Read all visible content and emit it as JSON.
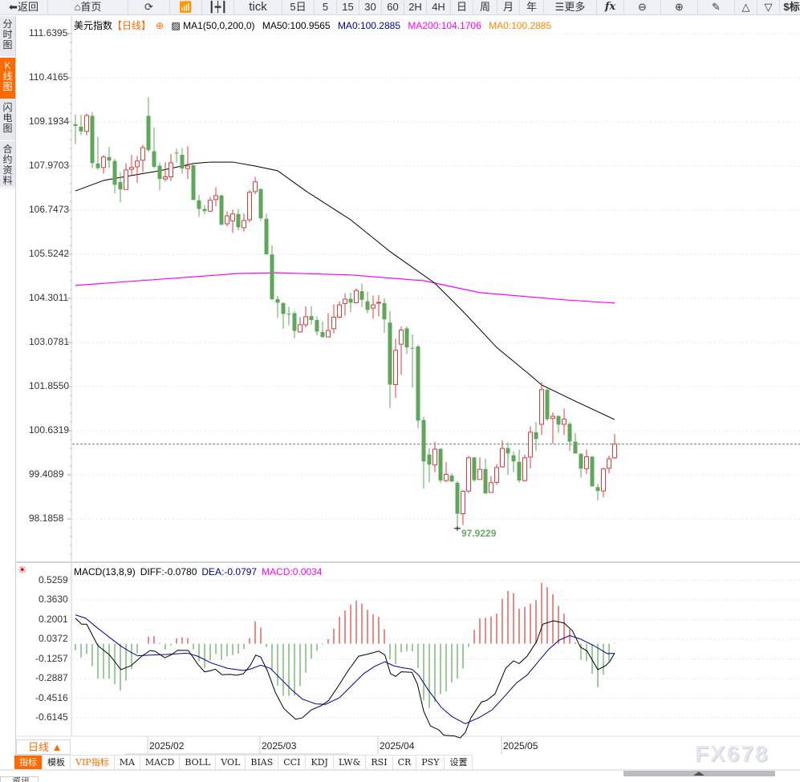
{
  "toolbar": {
    "back": "返回",
    "home": "首页",
    "tick": "tick",
    "p5d": "5日",
    "p5": "5",
    "p15": "15",
    "p30": "30",
    "p60": "60",
    "p2h": "2H",
    "p4h": "4H",
    "day": "日",
    "week": "周",
    "month": "月",
    "year": "年",
    "more": "更多",
    "fx": "fx",
    "dollar": "$标"
  },
  "side_tabs": [
    {
      "label": "分时图"
    },
    {
      "label": "K线图"
    },
    {
      "label": "闪电图"
    },
    {
      "label": "合约资料"
    }
  ],
  "legend": {
    "name": "美元指数",
    "period": "【日线】",
    "ma1": "MA1(50,0,200,0)",
    "ma50": "MA50:100.9565",
    "ma0a": "MA0:100.2885",
    "ma200": "MA200:104.1706",
    "ma0b": "MA0:100.2885"
  },
  "macd_legend": {
    "name": "MACD(13,8,9)",
    "diff": "DIFF:-0.0780",
    "dea": "DEA:-0.0797",
    "macd": "MACD:0.0034"
  },
  "colors": {
    "up": "#e03b3b",
    "down": "#5ea65a",
    "ma50": "#000000",
    "ma200": "#ff00ff",
    "dea": "#0000a0",
    "accent": "#ff6a00"
  },
  "price_ticks": [
    "111.6395",
    "110.4165",
    "109.1934",
    "107.9703",
    "106.7473",
    "105.5242",
    "104.3011",
    "103.0781",
    "101.8550",
    "100.6319",
    "99.4089",
    "98.1858"
  ],
  "macd_ticks": [
    "0.5259",
    "0.3630",
    "0.2001",
    "0.0372",
    "-0.1257",
    "-0.2887",
    "-0.4516",
    "-0.6145"
  ],
  "low_label": "97.9229",
  "period_select": "日线 ▲",
  "bottom_tabs": [
    "指标",
    "模板",
    "VIP指标",
    "MA",
    "MACD",
    "BOLL",
    "VOL",
    "BIAS",
    "CCI",
    "KDJ",
    "LW&",
    "RSI",
    "CR",
    "PSY",
    "设置"
  ],
  "news_tab": "资讯",
  "watermark": "FX678",
  "chart_data": {
    "type": "candlestick",
    "ylim": [
      97.6,
      111.9
    ],
    "last_price": 100.26,
    "low": {
      "index": 68,
      "value": 97.9229
    },
    "x_ticks": [
      {
        "label": "2025/02",
        "index": 13
      },
      {
        "label": "2025/03",
        "index": 33
      },
      {
        "label": "2025/04",
        "index": 54
      },
      {
        "label": "2025/05",
        "index": 76
      }
    ],
    "ohlc": [
      [
        109.13,
        109.39,
        108.58,
        109.08
      ],
      [
        109.06,
        109.39,
        108.82,
        108.93
      ],
      [
        108.93,
        109.42,
        108.82,
        109.37
      ],
      [
        109.36,
        109.47,
        107.91,
        108.05
      ],
      [
        108.04,
        108.78,
        107.87,
        107.91
      ],
      [
        107.93,
        108.27,
        107.76,
        108.22
      ],
      [
        108.22,
        108.5,
        107.91,
        108.12
      ],
      [
        108.11,
        108.17,
        107.21,
        107.45
      ],
      [
        107.53,
        107.8,
        106.96,
        107.32
      ],
      [
        107.32,
        108.05,
        107.32,
        107.86
      ],
      [
        107.88,
        108.28,
        107.73,
        107.93
      ],
      [
        107.95,
        108.25,
        107.5,
        108.11
      ],
      [
        108.13,
        108.56,
        107.8,
        108.48
      ],
      [
        109.36,
        109.88,
        108.36,
        108.41
      ],
      [
        108.38,
        109.04,
        107.91,
        107.95
      ],
      [
        107.98,
        108.07,
        107.3,
        107.61
      ],
      [
        107.61,
        108.08,
        107.54,
        107.67
      ],
      [
        107.67,
        108.3,
        107.56,
        108.06
      ],
      [
        108.34,
        108.45,
        108.07,
        108.33
      ],
      [
        108.28,
        108.47,
        107.76,
        107.9
      ],
      [
        107.9,
        108.52,
        107.61,
        107.97
      ],
      [
        107.99,
        108.01,
        107.03,
        107.03
      ],
      [
        107.02,
        107.17,
        106.56,
        106.78
      ],
      [
        106.78,
        106.89,
        106.64,
        106.72
      ],
      [
        106.72,
        107.12,
        106.69,
        107.02
      ],
      [
        107.04,
        107.38,
        106.85,
        107.15
      ],
      [
        107.15,
        107.19,
        106.34,
        106.34
      ],
      [
        106.37,
        106.72,
        106.3,
        106.59
      ],
      [
        106.45,
        106.76,
        106.12,
        106.64
      ],
      [
        106.64,
        106.78,
        106.19,
        106.27
      ],
      [
        106.26,
        106.65,
        106.15,
        106.46
      ],
      [
        106.48,
        107.3,
        106.41,
        107.24
      ],
      [
        107.26,
        107.67,
        107.19,
        107.53
      ],
      [
        107.33,
        107.36,
        106.45,
        106.52
      ],
      [
        106.51,
        106.65,
        105.52,
        105.52
      ],
      [
        105.52,
        105.77,
        104.24,
        104.28
      ],
      [
        104.28,
        104.37,
        103.76,
        104.18
      ],
      [
        104.17,
        104.2,
        103.46,
        103.87
      ],
      [
        103.88,
        104.06,
        103.55,
        103.87
      ],
      [
        103.89,
        103.95,
        103.2,
        103.4
      ],
      [
        103.37,
        103.78,
        103.35,
        103.57
      ],
      [
        103.57,
        104.08,
        103.5,
        103.79
      ],
      [
        103.81,
        104.08,
        103.57,
        103.7
      ],
      [
        103.7,
        103.8,
        103.28,
        103.38
      ],
      [
        103.37,
        103.66,
        103.2,
        103.23
      ],
      [
        103.23,
        103.89,
        103.23,
        103.41
      ],
      [
        103.46,
        104.13,
        103.33,
        103.78
      ],
      [
        103.78,
        104.22,
        103.74,
        104.12
      ],
      [
        104.16,
        104.44,
        103.82,
        104.28
      ],
      [
        104.29,
        104.46,
        103.92,
        104.18
      ],
      [
        104.18,
        104.58,
        104.18,
        104.52
      ],
      [
        104.5,
        104.71,
        104.06,
        104.26
      ],
      [
        104.22,
        104.49,
        103.89,
        103.98
      ],
      [
        104.03,
        104.38,
        103.74,
        104.12
      ],
      [
        104.17,
        104.39,
        103.8,
        104.19
      ],
      [
        104.17,
        104.3,
        103.34,
        103.72
      ],
      [
        103.63,
        103.95,
        101.26,
        101.91
      ],
      [
        101.91,
        103.18,
        101.54,
        102.86
      ],
      [
        103.03,
        103.52,
        102.18,
        103.42
      ],
      [
        103.47,
        103.52,
        102.76,
        102.94
      ],
      [
        102.93,
        103.3,
        101.83,
        102.92
      ],
      [
        102.97,
        103.02,
        100.7,
        100.91
      ],
      [
        100.93,
        101.02,
        99.03,
        99.78
      ],
      [
        99.97,
        100.15,
        99.2,
        99.69
      ],
      [
        99.68,
        100.32,
        99.48,
        100.12
      ],
      [
        100.13,
        100.15,
        99.18,
        99.25
      ],
      [
        99.25,
        99.76,
        99.2,
        99.42
      ],
      [
        99.39,
        99.46,
        99.22,
        99.22
      ],
      [
        99.19,
        99.24,
        97.92,
        98.33
      ],
      [
        98.33,
        98.98,
        98.02,
        98.95
      ],
      [
        98.96,
        99.94,
        98.9,
        99.88
      ],
      [
        99.89,
        99.9,
        99.22,
        99.26
      ],
      [
        99.28,
        99.89,
        99.28,
        99.56
      ],
      [
        99.57,
        99.85,
        98.89,
        98.89
      ],
      [
        98.92,
        99.37,
        98.92,
        99.19
      ],
      [
        99.2,
        99.7,
        99.13,
        99.61
      ],
      [
        99.63,
        100.37,
        99.61,
        100.14
      ],
      [
        100.15,
        100.31,
        99.4,
        100
      ],
      [
        99.95,
        100.05,
        99.48,
        99.78
      ],
      [
        99.77,
        100.11,
        99.19,
        99.25
      ],
      [
        99.25,
        99.97,
        99.22,
        99.88
      ],
      [
        99.9,
        100.75,
        99.59,
        100.59
      ],
      [
        100.59,
        100.87,
        100.07,
        100.4
      ],
      [
        100.81,
        101.98,
        100.51,
        101.77
      ],
      [
        101.77,
        101.8,
        100.91,
        100.95
      ],
      [
        100.97,
        101.14,
        100.27,
        101.03
      ],
      [
        101.04,
        101.05,
        100.57,
        100.8
      ],
      [
        100.81,
        101.24,
        100.51,
        100.95
      ],
      [
        100.82,
        100.87,
        100.07,
        100.33
      ],
      [
        100.33,
        100.57,
        100,
        100
      ],
      [
        99.99,
        100.02,
        99.33,
        99.58
      ],
      [
        99.58,
        100.11,
        99.44,
        99.91
      ],
      [
        99.91,
        99.94,
        99.07,
        99.09
      ],
      [
        99.07,
        99.16,
        98.7,
        98.96
      ],
      [
        98.96,
        99.61,
        98.79,
        99.57
      ],
      [
        99.59,
        99.94,
        99.45,
        99.85
      ],
      [
        99.88,
        100.54,
        99.85,
        100.26
      ]
    ],
    "ma50": [
      [
        0,
        107.28
      ],
      [
        5,
        107.57
      ],
      [
        9,
        107.68
      ],
      [
        15,
        107.84
      ],
      [
        21,
        108.04
      ],
      [
        24,
        108.08
      ],
      [
        28,
        108.08
      ],
      [
        32,
        107.97
      ],
      [
        36,
        107.84
      ],
      [
        41,
        107.28
      ],
      [
        47,
        106.68
      ],
      [
        49,
        106.48
      ],
      [
        56,
        105.6
      ],
      [
        64,
        104.72
      ],
      [
        69,
        103.94
      ],
      [
        75,
        102.94
      ],
      [
        81,
        102.17
      ],
      [
        83,
        101.9
      ],
      [
        89,
        101.45
      ],
      [
        96,
        100.94
      ]
    ],
    "ma200": [
      [
        0,
        104.66
      ],
      [
        15,
        104.83
      ],
      [
        29,
        104.99
      ],
      [
        36,
        105.01
      ],
      [
        49,
        104.95
      ],
      [
        62,
        104.79
      ],
      [
        72,
        104.46
      ],
      [
        87,
        104.26
      ],
      [
        96,
        104.17
      ]
    ],
    "macd": {
      "ylim": [
        -0.72,
        0.56
      ],
      "diff": [
        [
          0,
          0.212
        ],
        [
          1.1,
          0.162
        ],
        [
          2,
          0.162
        ],
        [
          4,
          -0.016
        ],
        [
          6.1,
          -0.094
        ],
        [
          8.1,
          -0.215
        ],
        [
          9.9,
          -0.182
        ],
        [
          11.8,
          -0.104
        ],
        [
          13.3,
          -0.056
        ],
        [
          14.2,
          -0.063
        ],
        [
          15.9,
          -0.116
        ],
        [
          17,
          -0.094
        ],
        [
          18.2,
          -0.054
        ],
        [
          20.1,
          -0.056
        ],
        [
          21.8,
          -0.171
        ],
        [
          23,
          -0.233
        ],
        [
          24.2,
          -0.222
        ],
        [
          24.9,
          -0.211
        ],
        [
          26.1,
          -0.257
        ],
        [
          27.5,
          -0.254
        ],
        [
          28.7,
          -0.261
        ],
        [
          29.9,
          -0.249
        ],
        [
          31.1,
          -0.183
        ],
        [
          32.1,
          -0.094
        ],
        [
          33,
          -0.111
        ],
        [
          34.2,
          -0.227
        ],
        [
          35.6,
          -0.404
        ],
        [
          37.1,
          -0.537
        ],
        [
          39.2,
          -0.626
        ],
        [
          40.4,
          -0.614
        ],
        [
          42,
          -0.548
        ],
        [
          43.7,
          -0.515
        ],
        [
          45.1,
          -0.47
        ],
        [
          47,
          -0.337
        ],
        [
          48.5,
          -0.227
        ],
        [
          50.4,
          -0.104
        ],
        [
          52.3,
          -0.083
        ],
        [
          54,
          -0.061
        ],
        [
          55.1,
          -0.094
        ],
        [
          56.1,
          -0.249
        ],
        [
          57,
          -0.271
        ],
        [
          58,
          -0.233
        ],
        [
          59.9,
          -0.237
        ],
        [
          60.9,
          -0.337
        ],
        [
          62,
          -0.559
        ],
        [
          63.2,
          -0.681
        ],
        [
          64.7,
          -0.714
        ],
        [
          65.6,
          -0.759
        ],
        [
          67.5,
          -0.765
        ],
        [
          68.5,
          -0.781
        ],
        [
          69.4,
          -0.736
        ],
        [
          70.4,
          -0.615
        ],
        [
          72.3,
          -0.482
        ],
        [
          73.2,
          -0.471
        ],
        [
          74.7,
          -0.416
        ],
        [
          76.6,
          -0.204
        ],
        [
          78,
          -0.142
        ],
        [
          79,
          -0.164
        ],
        [
          80.4,
          -0.104
        ],
        [
          82.1,
          0.017
        ],
        [
          83.2,
          0.162
        ],
        [
          85.1,
          0.19
        ],
        [
          87,
          0.172
        ],
        [
          88.5,
          0.106
        ],
        [
          89.9,
          -0.027
        ],
        [
          91.1,
          -0.061
        ],
        [
          93,
          -0.215
        ],
        [
          94.4,
          -0.182
        ],
        [
          95.1,
          -0.149
        ],
        [
          96,
          -0.078
        ]
      ],
      "dea": [
        [
          0,
          0.239
        ],
        [
          1.8,
          0.212
        ],
        [
          3.7,
          0.139
        ],
        [
          6.1,
          0.051
        ],
        [
          8.2,
          -0.023
        ],
        [
          9.9,
          -0.071
        ],
        [
          11.1,
          -0.1
        ],
        [
          13.3,
          -0.094
        ],
        [
          16.1,
          -0.089
        ],
        [
          19.9,
          -0.078
        ],
        [
          21.8,
          -0.104
        ],
        [
          24.2,
          -0.16
        ],
        [
          27.1,
          -0.204
        ],
        [
          29.9,
          -0.222
        ],
        [
          31.1,
          -0.211
        ],
        [
          33,
          -0.178
        ],
        [
          34.7,
          -0.204
        ],
        [
          36.6,
          -0.293
        ],
        [
          38.5,
          -0.382
        ],
        [
          40.4,
          -0.459
        ],
        [
          42.8,
          -0.499
        ],
        [
          44.5,
          -0.503
        ],
        [
          47,
          -0.448
        ],
        [
          49.4,
          -0.337
        ],
        [
          51.3,
          -0.249
        ],
        [
          53.2,
          -0.189
        ],
        [
          55.1,
          -0.149
        ],
        [
          56.6,
          -0.182
        ],
        [
          58,
          -0.197
        ],
        [
          59.9,
          -0.211
        ],
        [
          61.1,
          -0.26
        ],
        [
          62.8,
          -0.382
        ],
        [
          65.1,
          -0.526
        ],
        [
          67,
          -0.603
        ],
        [
          69.4,
          -0.663
        ],
        [
          71.8,
          -0.614
        ],
        [
          74.2,
          -0.548
        ],
        [
          76.6,
          -0.426
        ],
        [
          78.5,
          -0.326
        ],
        [
          80.4,
          -0.26
        ],
        [
          82.8,
          -0.127
        ],
        [
          84.2,
          -0.049
        ],
        [
          86.1,
          0.029
        ],
        [
          88,
          0.068
        ],
        [
          89.9,
          0.039
        ],
        [
          92.3,
          -0.016
        ],
        [
          94.7,
          -0.082
        ],
        [
          96,
          -0.0797
        ]
      ]
    }
  }
}
